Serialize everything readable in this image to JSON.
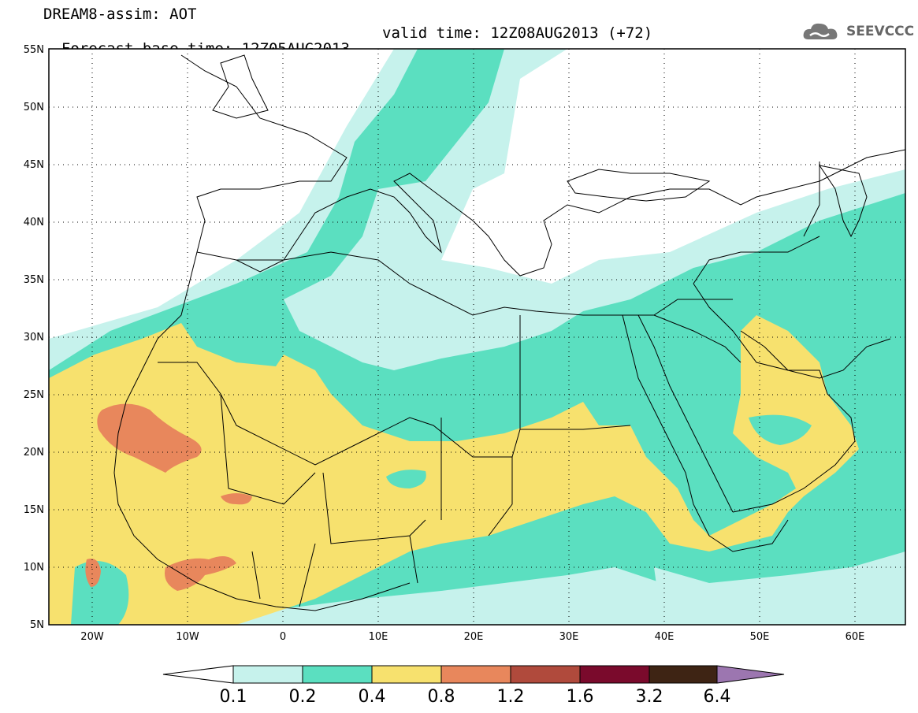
{
  "header": {
    "line1": "DREAM8-assim: AOT",
    "line2": "Forecast base time: 12Z05AUG2013",
    "valid": "valid time: 12Z08AUG2013 (+72)"
  },
  "logo": {
    "icon": "cloud-icon",
    "text": "SEEVCCC"
  },
  "map": {
    "lat_labels": [
      "55N",
      "50N",
      "45N",
      "40N",
      "35N",
      "30N",
      "25N",
      "20N",
      "15N",
      "10N",
      "5N"
    ],
    "lon_labels": [
      "20W",
      "10W",
      "0",
      "10E",
      "20E",
      "30E",
      "40E",
      "50E",
      "60E"
    ],
    "lat_range": [
      5,
      55
    ],
    "lon_range": [
      -25,
      65
    ]
  },
  "colorbar": {
    "labels": [
      "0.1",
      "0.2",
      "0.4",
      "0.8",
      "1.2",
      "1.6",
      "3.2",
      "6.4"
    ],
    "colors": [
      "#ffffff",
      "#c6f2ec",
      "#5bdfc0",
      "#f7e16e",
      "#e8875c",
      "#b04a3c",
      "#7a0a2c",
      "#3e2414",
      "#9c76b0"
    ]
  },
  "palette": {
    "land_line": "#000000",
    "c1": "#c6f2ec",
    "c2": "#5bdfc0",
    "c3": "#f7e16e",
    "c4": "#e8875c"
  }
}
